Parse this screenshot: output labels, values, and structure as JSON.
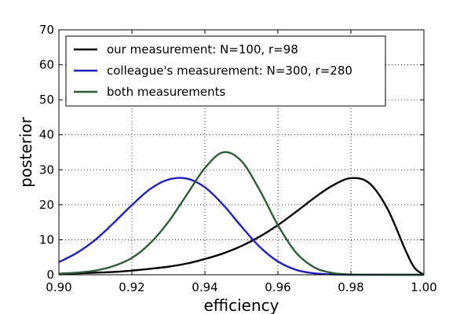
{
  "chart_data": {
    "type": "line",
    "title": "",
    "xlabel": "efficiency",
    "ylabel": "posterior",
    "xlim": [
      0.9,
      1.0
    ],
    "ylim": [
      0,
      70
    ],
    "xticks": [
      "0.90",
      "0.92",
      "0.94",
      "0.96",
      "0.98",
      "1.00"
    ],
    "yticks": [
      "0",
      "10",
      "20",
      "30",
      "40",
      "50",
      "60",
      "70"
    ],
    "grid": true,
    "legend_position": "top-left",
    "series": [
      {
        "name": "our measurement: N=100, r=98",
        "color": "#000000",
        "x": [
          0.9,
          0.905,
          0.91,
          0.915,
          0.92,
          0.925,
          0.93,
          0.935,
          0.94,
          0.945,
          0.95,
          0.955,
          0.96,
          0.965,
          0.97,
          0.975,
          0.98,
          0.985,
          0.99,
          0.995,
          0.9975,
          1.0
        ],
        "y": [
          0.3,
          0.4,
          0.6,
          0.8,
          1.2,
          1.7,
          2.3,
          3.2,
          4.5,
          6.1,
          8.2,
          10.9,
          14.2,
          18.0,
          22.0,
          25.5,
          27.6,
          26.2,
          18.9,
          6.9,
          1.9,
          0.0
        ]
      },
      {
        "name": "colleague's measurement: N=300, r=280",
        "color": "#1f1fbf",
        "x": [
          0.9,
          0.905,
          0.91,
          0.915,
          0.92,
          0.925,
          0.93,
          0.935,
          0.94,
          0.945,
          0.95,
          0.955,
          0.96,
          0.965,
          0.97,
          0.975,
          0.98,
          0.99,
          1.0
        ],
        "y": [
          3.6,
          6.3,
          10.0,
          14.8,
          19.9,
          24.5,
          27.2,
          27.5,
          25.0,
          20.0,
          13.8,
          8.0,
          3.8,
          1.4,
          0.4,
          0.1,
          0.0,
          0.0,
          0.0
        ]
      },
      {
        "name": "both measurements",
        "color": "#2e5c38",
        "x": [
          0.9,
          0.905,
          0.91,
          0.915,
          0.92,
          0.925,
          0.93,
          0.935,
          0.94,
          0.945,
          0.95,
          0.955,
          0.96,
          0.965,
          0.97,
          0.975,
          0.98,
          0.99,
          1.0
        ],
        "y": [
          0.3,
          0.6,
          1.2,
          2.5,
          4.8,
          9.0,
          15.1,
          22.8,
          30.5,
          35.0,
          32.5,
          24.2,
          14.2,
          6.3,
          2.1,
          0.5,
          0.1,
          0.0,
          0.0
        ]
      }
    ]
  }
}
